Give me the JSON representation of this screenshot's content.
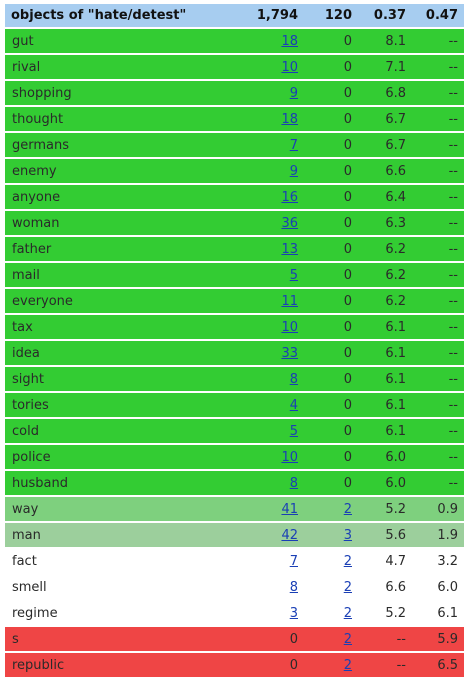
{
  "header": {
    "title": "objects of \"hate/detest\"",
    "freq1": "1,794",
    "freq2": "120",
    "score1": "0.37",
    "score2": "0.47"
  },
  "colors": {
    "header_bg": "#a7cdf0",
    "strong_green": "#33cc33",
    "light_green_1": "#7ed07e",
    "light_green_2": "#9ccf9c",
    "white": "#ffffff",
    "red": "#ef4545",
    "link": "#1a3fb5"
  },
  "rows": [
    {
      "word": "gut",
      "f1": "18",
      "f2": "0",
      "s1": "8.1",
      "s2": "--",
      "cls": "g"
    },
    {
      "word": "rival",
      "f1": "10",
      "f2": "0",
      "s1": "7.1",
      "s2": "--",
      "cls": "g"
    },
    {
      "word": "shopping",
      "f1": "9",
      "f2": "0",
      "s1": "6.8",
      "s2": "--",
      "cls": "g"
    },
    {
      "word": "thought",
      "f1": "18",
      "f2": "0",
      "s1": "6.7",
      "s2": "--",
      "cls": "g"
    },
    {
      "word": "germans",
      "f1": "7",
      "f2": "0",
      "s1": "6.7",
      "s2": "--",
      "cls": "g"
    },
    {
      "word": "enemy",
      "f1": "9",
      "f2": "0",
      "s1": "6.6",
      "s2": "--",
      "cls": "g"
    },
    {
      "word": "anyone",
      "f1": "16",
      "f2": "0",
      "s1": "6.4",
      "s2": "--",
      "cls": "g"
    },
    {
      "word": "woman",
      "f1": "36",
      "f2": "0",
      "s1": "6.3",
      "s2": "--",
      "cls": "g"
    },
    {
      "word": "father",
      "f1": "13",
      "f2": "0",
      "s1": "6.2",
      "s2": "--",
      "cls": "g"
    },
    {
      "word": "mail",
      "f1": "5",
      "f2": "0",
      "s1": "6.2",
      "s2": "--",
      "cls": "g"
    },
    {
      "word": "everyone",
      "f1": "11",
      "f2": "0",
      "s1": "6.2",
      "s2": "--",
      "cls": "g"
    },
    {
      "word": "tax",
      "f1": "10",
      "f2": "0",
      "s1": "6.1",
      "s2": "--",
      "cls": "g"
    },
    {
      "word": "idea",
      "f1": "33",
      "f2": "0",
      "s1": "6.1",
      "s2": "--",
      "cls": "g"
    },
    {
      "word": "sight",
      "f1": "8",
      "f2": "0",
      "s1": "6.1",
      "s2": "--",
      "cls": "g"
    },
    {
      "word": "tories",
      "f1": "4",
      "f2": "0",
      "s1": "6.1",
      "s2": "--",
      "cls": "g"
    },
    {
      "word": "cold",
      "f1": "5",
      "f2": "0",
      "s1": "6.1",
      "s2": "--",
      "cls": "g"
    },
    {
      "word": "police",
      "f1": "10",
      "f2": "0",
      "s1": "6.0",
      "s2": "--",
      "cls": "g"
    },
    {
      "word": "husband",
      "f1": "8",
      "f2": "0",
      "s1": "6.0",
      "s2": "--",
      "cls": "g"
    },
    {
      "word": "way",
      "f1": "41",
      "f2": "2",
      "s1": "5.2",
      "s2": "0.9",
      "cls": "lg1"
    },
    {
      "word": "man",
      "f1": "42",
      "f2": "3",
      "s1": "5.6",
      "s2": "1.9",
      "cls": "lg2"
    },
    {
      "word": "fact",
      "f1": "7",
      "f2": "2",
      "s1": "4.7",
      "s2": "3.2",
      "cls": "w"
    },
    {
      "word": "smell",
      "f1": "8",
      "f2": "2",
      "s1": "6.6",
      "s2": "6.0",
      "cls": "w"
    },
    {
      "word": "regime",
      "f1": "3",
      "f2": "2",
      "s1": "5.2",
      "s2": "6.1",
      "cls": "w"
    },
    {
      "word": "s",
      "f1": "0",
      "f2": "2",
      "s1": "--",
      "s2": "5.9",
      "cls": "r"
    },
    {
      "word": "republic",
      "f1": "0",
      "f2": "2",
      "s1": "--",
      "s2": "6.5",
      "cls": "r"
    }
  ]
}
